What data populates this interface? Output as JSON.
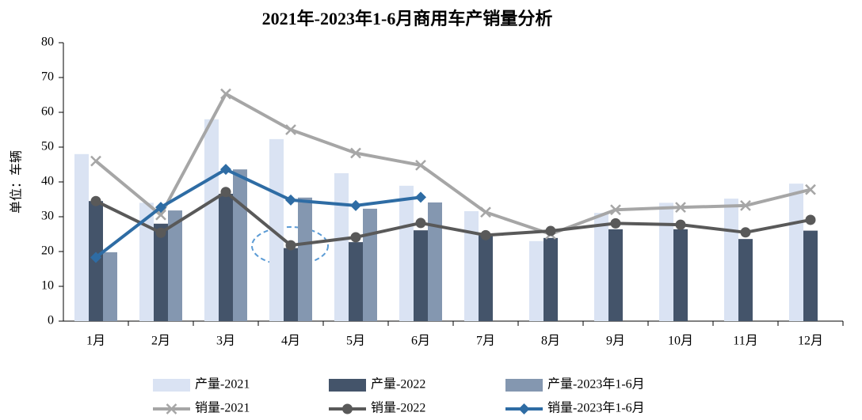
{
  "chart_data": {
    "type": "bar_line",
    "title": "2021年-2023年1-6月商用车产销量分析",
    "y_label": "单位：车辆",
    "categories": [
      "1月",
      "2月",
      "3月",
      "4月",
      "5月",
      "6月",
      "7月",
      "8月",
      "9月",
      "10月",
      "11月",
      "12月"
    ],
    "ylim": [
      0,
      80
    ],
    "yticks": [
      0,
      10,
      20,
      30,
      40,
      50,
      60,
      70,
      80
    ],
    "legend": "bottom",
    "series": [
      {
        "name": "产量-2021",
        "kind": "bar",
        "color": "#dae3f3",
        "values": [
          48,
          34,
          58,
          52.3,
          42.5,
          38.9,
          31.6,
          23,
          31.1,
          34,
          35.2,
          39.5
        ]
      },
      {
        "name": "产量-2022",
        "kind": "bar",
        "color": "#44546a",
        "values": [
          34.5,
          28,
          36.6,
          21,
          22.7,
          26.1,
          24.8,
          23.9,
          26.4,
          26.4,
          23.6,
          26
        ]
      },
      {
        "name": "产量-2023年1-6月",
        "kind": "bar",
        "color": "#8497b0",
        "values": [
          19.8,
          31.8,
          43.6,
          35.5,
          32.3,
          34.1,
          null,
          null,
          null,
          null,
          null,
          null
        ]
      },
      {
        "name": "销量-2021",
        "kind": "line",
        "marker": "x",
        "color": "#a6a6a6",
        "values": [
          46,
          30.5,
          65.3,
          55,
          48.3,
          44.8,
          31.3,
          25,
          32,
          32.7,
          33.2,
          37.8
        ]
      },
      {
        "name": "销量-2022",
        "kind": "line",
        "marker": "circle",
        "color": "#595959",
        "values": [
          34.5,
          25.4,
          37.1,
          21.8,
          24.1,
          28.2,
          24.7,
          25.9,
          28.1,
          27.7,
          25.5,
          29.1
        ]
      },
      {
        "name": "销量-2023年1-6月",
        "kind": "line",
        "marker": "diamond",
        "color": "#2e6ca4",
        "values": [
          18.3,
          32.7,
          43.6,
          34.8,
          33.2,
          35.6,
          null,
          null,
          null,
          null,
          null,
          null
        ]
      }
    ]
  }
}
